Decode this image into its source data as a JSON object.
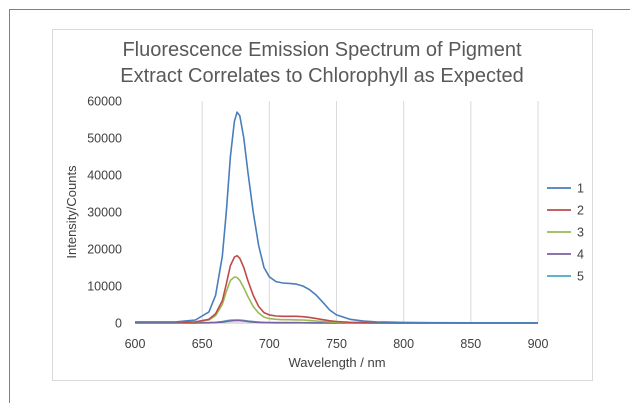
{
  "chart_data": {
    "type": "line",
    "title_lines": [
      "Fluorescence Emission Spectrum of Pigment",
      "Extract Correlates to Chlorophyll as Expected"
    ],
    "xlabel": "Wavelength / nm",
    "ylabel": "Intensity/Counts",
    "xlim": [
      600,
      900
    ],
    "ylim": [
      0,
      60000
    ],
    "x_ticks": [
      "600",
      "650",
      "700",
      "750",
      "800",
      "850",
      "900"
    ],
    "y_ticks": [
      "0",
      "10000",
      "20000",
      "30000",
      "40000",
      "50000",
      "60000"
    ],
    "grid": "vertical",
    "legend_position": "right",
    "x": [
      600,
      630,
      645,
      655,
      660,
      665,
      668,
      671,
      674,
      676,
      678,
      681,
      684,
      688,
      692,
      696,
      700,
      705,
      710,
      715,
      720,
      725,
      730,
      735,
      740,
      745,
      750,
      760,
      770,
      780,
      800,
      820,
      850,
      900
    ],
    "series": [
      {
        "name": "1",
        "color": "#4a7ebb",
        "values": [
          300,
          300,
          800,
          3000,
          7500,
          18000,
          30000,
          45000,
          54500,
          57000,
          56000,
          50000,
          41000,
          30000,
          21000,
          15000,
          12500,
          11200,
          10800,
          10700,
          10500,
          10000,
          9000,
          7500,
          5500,
          3500,
          2200,
          1000,
          500,
          300,
          150,
          80,
          50,
          30
        ]
      },
      {
        "name": "2",
        "color": "#be4b48",
        "values": [
          150,
          150,
          300,
          1000,
          2500,
          6000,
          10500,
          15500,
          17800,
          18200,
          17500,
          15000,
          11500,
          7500,
          4500,
          2800,
          2200,
          1900,
          1800,
          1800,
          1800,
          1700,
          1500,
          1200,
          900,
          600,
          400,
          200,
          100,
          60,
          40,
          20,
          15,
          10
        ]
      },
      {
        "name": "3",
        "color": "#98b954",
        "values": [
          100,
          100,
          250,
          800,
          2000,
          5000,
          8500,
          11500,
          12400,
          12300,
          11500,
          9500,
          7200,
          4500,
          2700,
          1600,
          1200,
          1000,
          900,
          900,
          850,
          800,
          700,
          550,
          400,
          280,
          180,
          90,
          50,
          30,
          20,
          10,
          10,
          5
        ]
      },
      {
        "name": "4",
        "color": "#7d60a0",
        "values": [
          20,
          20,
          30,
          60,
          120,
          250,
          400,
          550,
          650,
          680,
          650,
          550,
          420,
          280,
          170,
          110,
          80,
          60,
          50,
          50,
          50,
          45,
          40,
          35,
          25,
          20,
          15,
          10,
          5,
          5,
          5,
          5,
          5,
          5
        ]
      },
      {
        "name": "5",
        "color": "#46aac5",
        "values": [
          30,
          30,
          50,
          100,
          200,
          400,
          600,
          750,
          800,
          820,
          800,
          700,
          550,
          380,
          250,
          170,
          130,
          110,
          100,
          100,
          95,
          90,
          80,
          65,
          50,
          35,
          25,
          15,
          10,
          8,
          5,
          5,
          5,
          5
        ]
      }
    ]
  }
}
